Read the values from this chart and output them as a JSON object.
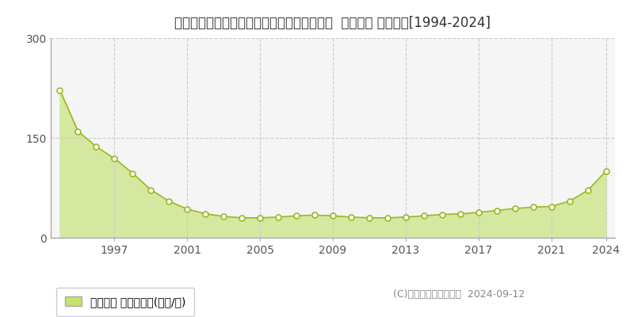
{
  "title": "北海道札幌市中央区大通東７丁目１２番１外  地価公示 地価推移[1994-2024]",
  "years": [
    1994,
    1995,
    1996,
    1997,
    1998,
    1999,
    2000,
    2001,
    2002,
    2003,
    2004,
    2005,
    2006,
    2007,
    2008,
    2009,
    2010,
    2011,
    2012,
    2013,
    2014,
    2015,
    2016,
    2017,
    2018,
    2019,
    2020,
    2021,
    2022,
    2023,
    2024
  ],
  "values": [
    222,
    160,
    137,
    119,
    97,
    72,
    55,
    43,
    36,
    32,
    30,
    30,
    31,
    33,
    34,
    33,
    31,
    30,
    30,
    31,
    33,
    35,
    36,
    38,
    41,
    44,
    46,
    47,
    55,
    71,
    100
  ],
  "ylim": [
    0,
    300
  ],
  "yticks": [
    0,
    150,
    300
  ],
  "xticks": [
    1997,
    2001,
    2005,
    2009,
    2013,
    2017,
    2021,
    2024
  ],
  "fill_color": "#d4e8a0",
  "line_color": "#9ab822",
  "marker_color": "#ffffff",
  "marker_edge_color": "#9ab822",
  "bg_color": "#ffffff",
  "plot_bg_color": "#f5f5f5",
  "grid_color": "#cccccc",
  "legend_label": "地価公示 平均坪単価(万円/坪)",
  "legend_color": "#c8e06e",
  "copyright": "(C)土地価格ドットコム  2024-09-12",
  "title_fontsize": 12,
  "tick_fontsize": 10,
  "legend_fontsize": 10,
  "copyright_fontsize": 9
}
